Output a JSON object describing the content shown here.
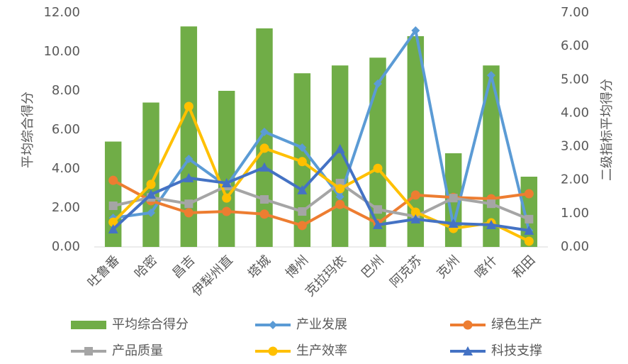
{
  "chart_data": {
    "type": "bar",
    "categories": [
      "吐鲁番",
      "哈密",
      "昌吉",
      "伊犁州直",
      "塔城",
      "博州",
      "克拉玛依",
      "巴州",
      "阿克苏",
      "克州",
      "喀什",
      "和田"
    ],
    "y_label": "平均综合得分",
    "y2_label": "二级指标平均得分",
    "ylim": [
      0,
      12
    ],
    "yticks": [
      {
        "value": 0,
        "label": "0.00"
      },
      {
        "value": 2,
        "label": "2.00"
      },
      {
        "value": 4,
        "label": "4.00"
      },
      {
        "value": 6,
        "label": "6.00"
      },
      {
        "value": 8,
        "label": "8.00"
      },
      {
        "value": 10,
        "label": "10.00"
      },
      {
        "value": 12,
        "label": "12.00"
      }
    ],
    "y2lim": [
      0,
      7
    ],
    "y2ticks": [
      {
        "value": 0,
        "label": "0.00"
      },
      {
        "value": 1,
        "label": "1.00"
      },
      {
        "value": 2,
        "label": "2.00"
      },
      {
        "value": 3,
        "label": "3.00"
      },
      {
        "value": 4,
        "label": "4.00"
      },
      {
        "value": 5,
        "label": "5.00"
      },
      {
        "value": 6,
        "label": "6.00"
      },
      {
        "value": 7,
        "label": "7.00"
      }
    ],
    "legend": "bottom",
    "series": [
      {
        "name": "平均综合得分",
        "type": "bar",
        "color": "#70ad47",
        "values": [
          5.4,
          7.4,
          11.3,
          8.0,
          11.2,
          8.9,
          9.3,
          9.7,
          10.8,
          4.8,
          9.3,
          3.6
        ]
      },
      {
        "name": "产业发展",
        "type": "line",
        "axis": "y2",
        "marker": "diamond",
        "color": "#5b9bd5",
        "values": [
          0.87,
          1.02,
          2.63,
          1.82,
          3.44,
          2.97,
          1.5,
          4.88,
          6.47,
          0.64,
          5.13,
          0.49
        ]
      },
      {
        "name": "绿色生产",
        "type": "line",
        "axis": "y2",
        "marker": "circle",
        "color": "#ed7d31",
        "values": [
          1.99,
          1.38,
          1.02,
          1.06,
          0.98,
          0.64,
          1.27,
          0.7,
          1.55,
          1.48,
          1.44,
          1.59
        ]
      },
      {
        "name": "产品质量",
        "type": "line",
        "axis": "y2",
        "marker": "square",
        "color": "#a5a5a5",
        "values": [
          1.23,
          1.48,
          1.29,
          1.82,
          1.42,
          1.06,
          1.91,
          1.12,
          0.91,
          1.46,
          1.29,
          0.83
        ]
      },
      {
        "name": "生产效率",
        "type": "line",
        "axis": "y2",
        "marker": "circle",
        "color": "#ffc000",
        "values": [
          0.74,
          1.87,
          4.2,
          1.46,
          2.95,
          2.55,
          1.74,
          2.35,
          1.04,
          0.55,
          0.72,
          0.17
        ]
      },
      {
        "name": "科技支撑",
        "type": "line",
        "axis": "y2",
        "marker": "triangle",
        "color": "#4472c4",
        "values": [
          0.53,
          1.57,
          2.06,
          1.91,
          2.38,
          1.7,
          2.93,
          0.66,
          0.83,
          0.7,
          0.66,
          0.49
        ]
      }
    ]
  }
}
